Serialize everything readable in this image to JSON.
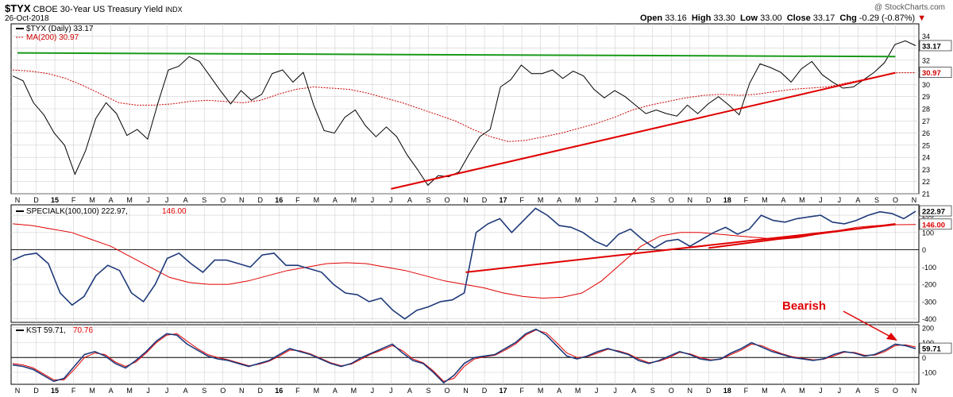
{
  "header": {
    "symbol": "$TYX",
    "name": "CBOE 30-Year US Treasury Yield",
    "exchange": "INDX",
    "date": "26-Oct-2018",
    "watermark": "@ StockCharts.com",
    "quote": {
      "open_label": "Open",
      "open": "33.16",
      "high_label": "High",
      "high": "33.30",
      "low_label": "Low",
      "low": "33.00",
      "close_label": "Close",
      "close": "33.17",
      "chg_label": "Chg",
      "chg": "-0.29 (-0.87%)"
    }
  },
  "panels": {
    "price": {
      "legend_main": "$TYX (Daily) 33.17",
      "legend_ma": "MA(200) 30.97",
      "last_value_label": "33.17",
      "ma_value_label": "30.97"
    },
    "specialk": {
      "legend": "SPECIALK(100,100) 222.97,",
      "legend_signal": "146.00",
      "last_value_label": "222.97",
      "signal_value_label": "146.00"
    },
    "kst": {
      "legend": "KST 59.71,",
      "legend_signal": "70.76",
      "last_value_label": "59.71",
      "annotation": "Bearish"
    }
  },
  "colors": {
    "price_line": "#000000",
    "ma_line": "#cc0000",
    "trendline_green": "#1a9a1a",
    "trendline_red": "#e00000",
    "indicator_line": "#1f3a7a",
    "signal_line": "#e00000",
    "grid": "#d0d0d0"
  },
  "chart_data": [
    {
      "type": "line",
      "panel": "price",
      "x_range": [
        "2014-11",
        "2018-10-26"
      ],
      "ylim": [
        21,
        35
      ],
      "y_ticks": [
        21,
        22,
        23,
        24,
        25,
        26,
        27,
        28,
        29,
        30,
        31,
        32,
        33,
        34
      ],
      "x_tick_labels": [
        "N",
        "D",
        "15",
        "F",
        "M",
        "A",
        "M",
        "J",
        "J",
        "A",
        "S",
        "O",
        "N",
        "D",
        "16",
        "F",
        "M",
        "A",
        "M",
        "J",
        "J",
        "A",
        "S",
        "O",
        "N",
        "D",
        "17",
        "F",
        "M",
        "A",
        "M",
        "J",
        "J",
        "A",
        "S",
        "O",
        "N",
        "D",
        "18",
        "F",
        "M",
        "A",
        "M",
        "J",
        "J",
        "A",
        "S",
        "O",
        "N"
      ],
      "series": [
        {
          "name": "$TYX (Daily)",
          "values": [
            30.7,
            30.3,
            28.5,
            27.5,
            26.0,
            25.0,
            22.6,
            24.5,
            27.2,
            28.5,
            27.6,
            25.8,
            26.3,
            25.5,
            28.5,
            31.2,
            31.5,
            32.3,
            31.9,
            30.7,
            29.5,
            28.4,
            29.5,
            28.7,
            29.2,
            30.9,
            31.2,
            30.2,
            31.0,
            28.3,
            26.2,
            26.0,
            27.3,
            27.9,
            26.6,
            25.7,
            26.5,
            25.7,
            24.2,
            23.0,
            21.7,
            22.5,
            22.4,
            22.8,
            24.3,
            25.7,
            26.3,
            29.8,
            30.4,
            31.6,
            30.9,
            30.9,
            31.2,
            30.5,
            31.1,
            30.7,
            29.6,
            28.9,
            29.5,
            29.0,
            28.3,
            27.6,
            27.9,
            27.6,
            27.4,
            28.3,
            27.6,
            28.4,
            29.0,
            28.3,
            27.5,
            30.1,
            31.7,
            31.4,
            31.0,
            30.2,
            31.3,
            31.9,
            30.8,
            30.2,
            29.7,
            29.8,
            30.4,
            31.0,
            31.8,
            33.3,
            33.6,
            33.2
          ]
        },
        {
          "name": "MA(200)",
          "values": [
            31.2,
            31.1,
            30.9,
            30.5,
            29.9,
            29.2,
            28.5,
            28.3,
            28.3,
            28.4,
            28.6,
            28.7,
            28.6,
            28.5,
            28.7,
            29.2,
            29.6,
            29.8,
            29.7,
            29.6,
            29.3,
            28.9,
            28.5,
            28.0,
            27.5,
            27.0,
            26.3,
            25.7,
            25.3,
            25.4,
            25.7,
            26.0,
            26.4,
            26.8,
            27.3,
            27.9,
            28.3,
            28.6,
            28.9,
            29.1,
            29.2,
            29.1,
            29.2,
            29.4,
            29.6,
            29.7,
            29.8,
            30.1,
            30.4,
            30.7,
            30.97,
            30.97
          ]
        }
      ],
      "annotations": [
        {
          "kind": "trendline",
          "label": "",
          "from": [
            "2014-11",
            32.6
          ],
          "to": [
            "2018-10",
            32.3
          ]
        },
        {
          "kind": "trendline",
          "label": "",
          "from": [
            "2016-07",
            21.4
          ],
          "to": [
            "2018-10",
            30.97
          ]
        }
      ]
    },
    {
      "type": "line",
      "panel": "specialk",
      "ylim": [
        -420,
        260
      ],
      "y_ticks": [
        -400,
        -300,
        -200,
        -100,
        0,
        100,
        200
      ],
      "series": [
        {
          "name": "SPECIALK(100,100)",
          "values": [
            -60,
            -30,
            -20,
            -80,
            -250,
            -320,
            -270,
            -150,
            -90,
            -120,
            -250,
            -300,
            -200,
            -50,
            -20,
            -80,
            -130,
            -60,
            -60,
            -80,
            -100,
            -30,
            -20,
            -90,
            -90,
            -110,
            -130,
            -200,
            -250,
            -260,
            -300,
            -280,
            -350,
            -400,
            -350,
            -330,
            -300,
            -290,
            -250,
            100,
            150,
            180,
            100,
            170,
            240,
            200,
            140,
            130,
            100,
            50,
            20,
            90,
            120,
            60,
            10,
            50,
            60,
            20,
            60,
            100,
            130,
            90,
            120,
            200,
            170,
            160,
            180,
            190,
            200,
            160,
            150,
            170,
            200,
            220,
            210,
            180,
            223
          ]
        },
        {
          "name": "Signal",
          "values": [
            150,
            140,
            120,
            100,
            60,
            20,
            -40,
            -100,
            -160,
            -190,
            -200,
            -200,
            -180,
            -150,
            -120,
            -100,
            -80,
            -75,
            -80,
            -100,
            -120,
            -150,
            -180,
            -200,
            -220,
            -250,
            -270,
            -280,
            -275,
            -250,
            -180,
            -80,
            20,
            80,
            100,
            100,
            90,
            80,
            70,
            60,
            70,
            90,
            110,
            130,
            140,
            145,
            146
          ]
        }
      ],
      "annotations": [
        {
          "kind": "trendline",
          "label": "",
          "from": [
            "2016-11",
            -130
          ],
          "to": [
            "2018-10",
            146
          ]
        },
        {
          "kind": "trendline",
          "label": "",
          "from": [
            "2017-12",
            10
          ],
          "to": [
            "2018-10",
            150
          ]
        }
      ]
    },
    {
      "type": "line",
      "panel": "kst",
      "ylim": [
        -180,
        220
      ],
      "y_ticks": [
        -100,
        0,
        100,
        200
      ],
      "series": [
        {
          "name": "KST",
          "values": [
            -50,
            -60,
            -80,
            -120,
            -160,
            -140,
            -60,
            20,
            40,
            10,
            -40,
            -70,
            -20,
            40,
            110,
            160,
            150,
            90,
            50,
            10,
            -10,
            -20,
            -40,
            -60,
            -40,
            -20,
            20,
            60,
            40,
            20,
            -10,
            -40,
            -60,
            -40,
            0,
            30,
            60,
            90,
            30,
            -20,
            -40,
            -100,
            -170,
            -120,
            -40,
            0,
            10,
            20,
            60,
            100,
            160,
            190,
            150,
            80,
            10,
            -10,
            10,
            40,
            60,
            40,
            20,
            -20,
            -40,
            -20,
            10,
            40,
            20,
            -10,
            -20,
            -10,
            30,
            60,
            100,
            70,
            40,
            20,
            0,
            -10,
            -20,
            -10,
            20,
            40,
            30,
            10,
            20,
            50,
            90,
            80,
            59.71
          ]
        },
        {
          "name": "Signal",
          "values": [
            -40,
            -50,
            -70,
            -110,
            -150,
            -150,
            -80,
            0,
            30,
            20,
            -30,
            -60,
            -30,
            30,
            100,
            150,
            160,
            110,
            60,
            20,
            0,
            -15,
            -35,
            -55,
            -45,
            -25,
            10,
            50,
            45,
            25,
            -5,
            -35,
            -55,
            -45,
            -10,
            25,
            50,
            80,
            45,
            -10,
            -35,
            -90,
            -160,
            -140,
            -60,
            -10,
            5,
            15,
            50,
            90,
            150,
            185,
            165,
            100,
            30,
            0,
            5,
            30,
            55,
            45,
            25,
            -10,
            -35,
            -25,
            0,
            35,
            25,
            0,
            -15,
            -12,
            20,
            50,
            90,
            80,
            50,
            25,
            5,
            -5,
            -15,
            -12,
            10,
            35,
            35,
            15,
            15,
            40,
            80,
            85,
            70.76
          ]
        }
      ],
      "annotations": [
        {
          "kind": "text",
          "label": "Bearish",
          "at": [
            "2018-09",
            190
          ]
        }
      ]
    }
  ]
}
